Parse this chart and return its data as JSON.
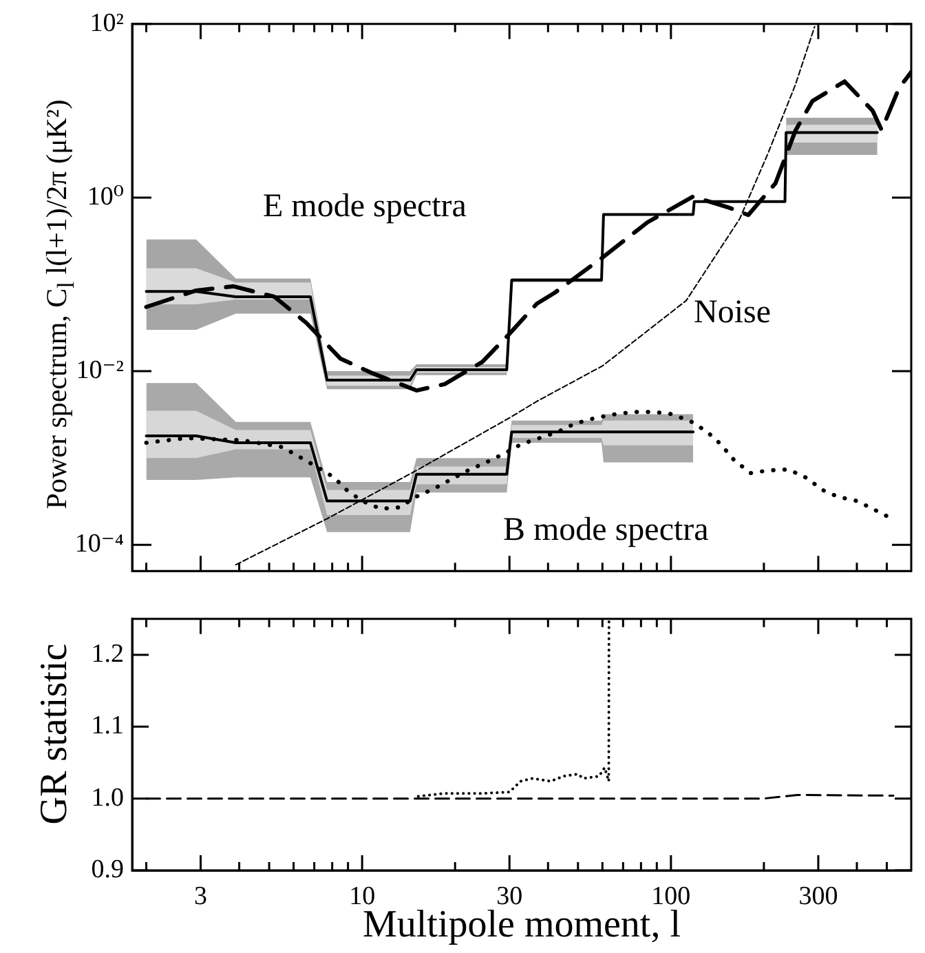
{
  "chart_data": [
    {
      "type": "line",
      "ylabel": "Power spectrum, C$_{l}$ l(l+1)/2π (μK²)",
      "log": "xy",
      "xlim": [
        1.8,
        600
      ],
      "ylim": [
        5e-05,
        100
      ],
      "xticks": [
        {
          "value": 2,
          "label": null
        },
        3,
        {
          "value": 4,
          "label": null
        },
        {
          "value": 5,
          "label": null
        },
        {
          "value": 6,
          "label": null
        },
        {
          "value": 7,
          "label": null
        },
        {
          "value": 8,
          "label": null
        },
        {
          "value": 9,
          "label": null
        },
        10,
        {
          "value": 20,
          "label": null
        },
        30,
        {
          "value": 40,
          "label": null
        },
        {
          "value": 50,
          "label": null
        },
        {
          "value": 60,
          "label": null
        },
        {
          "value": 70,
          "label": null
        },
        {
          "value": 80,
          "label": null
        },
        {
          "value": 90,
          "label": null
        },
        100,
        {
          "value": 200,
          "label": null
        },
        300,
        {
          "value": 400,
          "label": null
        },
        {
          "value": 500,
          "label": null
        }
      ],
      "yticks": [
        {
          "value": 0.0001,
          "label": "10⁻⁴"
        },
        {
          "value": 0.01,
          "label": "10⁻²"
        },
        {
          "value": 1,
          "label": "10⁰"
        },
        {
          "value": 100,
          "label": "10²"
        }
      ],
      "tick_labels": "y",
      "annotations": [
        "E mode spectra",
        "B mode spectra",
        "Noise"
      ],
      "series": [
        {
          "color": "#a6a6a6",
          "x": [
            2,
            2.9,
            3.9,
            6.8,
            7.7,
            14.3,
            15,
            29.4,
            30.5,
            59.6,
            60.5,
            118,
            119,
            234,
            236,
            466
          ],
          "values": [
            null,
            null,
            null,
            null,
            null,
            null,
            null,
            null,
            null,
            null,
            null,
            null,
            null,
            null,
            null,
            null
          ],
          "upper": [
            0.33,
            0.33,
            0.117,
            0.117,
            0.01,
            0.01,
            0.012,
            0.012,
            0.118,
            0.118,
            null,
            null,
            null,
            null,
            8.3,
            8.3
          ],
          "lower": [
            0.03,
            0.03,
            0.046,
            0.046,
            0.0062,
            0.0062,
            0.009,
            0.009,
            0.106,
            0.106,
            null,
            null,
            null,
            null,
            3.1,
            3.1
          ]
        },
        {
          "color": "#dadada",
          "x": [
            2,
            2.9,
            3.9,
            6.8,
            7.7,
            14.3,
            15,
            29.4,
            30.5,
            59.6,
            60.5,
            118,
            119,
            234,
            236,
            466
          ],
          "values": [
            null,
            null,
            null,
            null,
            null,
            null,
            null,
            null,
            null,
            null,
            null,
            null,
            null,
            null,
            null,
            null
          ],
          "upper": [
            0.154,
            0.154,
            0.105,
            0.105,
            0.0089,
            0.0089,
            0.0112,
            0.0112,
            0.115,
            0.115,
            null,
            null,
            null,
            null,
            6.9,
            6.9
          ],
          "lower": [
            0.059,
            0.059,
            0.067,
            0.067,
            0.0068,
            0.0068,
            0.0096,
            0.0096,
            0.109,
            0.109,
            null,
            null,
            null,
            null,
            4.3,
            4.3
          ]
        },
        {
          "color": "#a9a9a9",
          "x": [
            2,
            2.9,
            3.9,
            6.8,
            7.7,
            14.3,
            15,
            29.4,
            30.5,
            59.6,
            60.5,
            118
          ],
          "values": [
            null,
            null,
            null,
            null,
            null,
            null,
            null,
            null,
            null,
            null,
            null,
            null
          ],
          "upper": [
            0.0073,
            0.0073,
            0.0026,
            0.0026,
            0.00053,
            0.00053,
            0.001,
            0.001,
            0.0027,
            0.0027,
            0.0032,
            0.0032
          ],
          "lower": [
            0.00056,
            0.00056,
            0.0006,
            0.0006,
            0.00014,
            0.00014,
            0.0004,
            0.0004,
            0.0015,
            0.0015,
            0.00089,
            0.00089
          ]
        },
        {
          "color": "#d7d7d7",
          "x": [
            2,
            2.9,
            3.9,
            6.8,
            7.7,
            14.3,
            15,
            29.4,
            30.5,
            59.6,
            60.5,
            118
          ],
          "values": [
            null,
            null,
            null,
            null,
            null,
            null,
            null,
            null,
            null,
            null,
            null,
            null
          ],
          "upper": [
            0.0035,
            0.0035,
            0.0021,
            0.0021,
            0.00043,
            0.00043,
            0.0008,
            0.0008,
            0.0024,
            0.0024,
            0.0027,
            0.0027
          ],
          "lower": [
            0.001,
            0.001,
            0.00126,
            0.00126,
            0.00022,
            0.00022,
            0.0005,
            0.0005,
            0.0017,
            0.0017,
            0.0014,
            0.0014
          ]
        },
        {
          "color": "#000000",
          "line_style": "dashed",
          "x": [
            3.9,
            7.7,
            15,
            30,
            36.8,
            60,
            112,
            167,
            206,
            253,
            292
          ],
          "values": [
            5.9e-05,
            0.0002,
            0.00072,
            0.0029,
            0.0045,
            0.0115,
            0.065,
            0.57,
            3.2,
            20,
            93
          ]
        },
        {
          "color": "#000000",
          "line_style": "dashed",
          "x": [
            2,
            2.9,
            3.84,
            5.2,
            6.6,
            8.5,
            10.7,
            15,
            18.5,
            24.5,
            30,
            36.8,
            42,
            59.6,
            84,
            118,
            155,
            178,
            218,
            253,
            287,
            365,
            450,
            481,
            548,
            600
          ],
          "values": [
            0.055,
            0.085,
            0.095,
            0.072,
            0.036,
            0.014,
            0.0096,
            0.006,
            0.0071,
            0.0128,
            0.027,
            0.06,
            0.08,
            0.2,
            0.52,
            1.03,
            0.76,
            0.63,
            1.46,
            5.9,
            12.9,
            21.8,
            10,
            6,
            18.3,
            28
          ]
        },
        {
          "color": "#000000",
          "line_style": "dotted",
          "x": [
            2,
            2.7,
            4.1,
            5.5,
            6.3,
            7.1,
            8.1,
            8.9,
            10,
            11.5,
            13.2,
            15,
            17,
            19.3,
            22,
            25.2,
            28.8,
            32.7,
            37.6,
            43,
            49,
            57,
            66,
            76,
            88,
            101,
            117,
            131,
            145,
            160,
            181,
            207,
            240,
            275,
            309,
            346,
            400,
            450,
            506
          ],
          "values": [
            0.0015,
            0.0017,
            0.0016,
            0.00134,
            0.00102,
            0.0008,
            0.0006,
            0.00043,
            0.00032,
            0.00026,
            0.00027,
            0.00036,
            0.00044,
            0.00056,
            0.00072,
            0.00089,
            0.00112,
            0.00144,
            0.0017,
            0.002,
            0.0025,
            0.0029,
            0.0032,
            0.0034,
            0.0034,
            0.0032,
            0.0026,
            0.002,
            0.00144,
            0.00095,
            0.00067,
            0.00072,
            0.00074,
            0.00059,
            0.00043,
            0.00036,
            0.00032,
            0.00026,
            0.00021
          ]
        },
        {
          "color": "#000000",
          "line_style": "solid",
          "x": [
            2,
            2.9,
            3.9,
            6.8,
            7.7,
            14.3,
            15,
            29.4,
            30.5,
            59.6,
            60.5,
            118,
            119,
            234,
            236,
            466
          ],
          "values": [
            0.083,
            0.083,
            0.072,
            0.072,
            0.0079,
            0.0079,
            0.0104,
            0.0104,
            0.112,
            0.112,
            0.64,
            0.64,
            0.9,
            0.9,
            5.6,
            5.6
          ]
        },
        {
          "color": "#000000",
          "line_style": "solid",
          "x": [
            2,
            2.9,
            3.9,
            6.8,
            7.7,
            14.3,
            15,
            29.4,
            30.5,
            59.6,
            60.5,
            118
          ],
          "values": [
            0.0018,
            0.0018,
            0.0015,
            0.0015,
            0.00032,
            0.00032,
            0.00065,
            0.00065,
            0.002,
            0.002,
            0.002,
            0.002
          ]
        }
      ]
    },
    {
      "type": "line",
      "xlabel": "Multipole moment, l",
      "ylabel": "GR statistic",
      "log": "x",
      "xlim": [
        1.8,
        600
      ],
      "ylim": [
        0.9,
        1.25
      ],
      "xticks": [
        {
          "value": 2,
          "label": null
        },
        3,
        {
          "value": 4,
          "label": null
        },
        {
          "value": 5,
          "label": null
        },
        {
          "value": 6,
          "label": null
        },
        {
          "value": 7,
          "label": null
        },
        {
          "value": 8,
          "label": null
        },
        {
          "value": 9,
          "label": null
        },
        10,
        {
          "value": 20,
          "label": null
        },
        30,
        {
          "value": 40,
          "label": null
        },
        {
          "value": 50,
          "label": null
        },
        {
          "value": 60,
          "label": null
        },
        {
          "value": 70,
          "label": null
        },
        {
          "value": 80,
          "label": null
        },
        {
          "value": 90,
          "label": null
        },
        100,
        {
          "value": 200,
          "label": null
        },
        300,
        {
          "value": 400,
          "label": null
        },
        {
          "value": 500,
          "label": null
        }
      ],
      "yticks": [
        0.9,
        {
          "value": 1,
          "label": "1.0"
        },
        1.1,
        1.2
      ],
      "series": [
        {
          "color": "#000000",
          "line_style": "dashed",
          "x": [
            2,
            10,
            100,
            200,
            257,
            525
          ],
          "values": [
            1.0,
            1.0,
            1.0,
            1.0,
            1.005,
            1.004
          ]
        },
        {
          "color": "#000000",
          "line_style": "dotted",
          "x": [
            15.2,
            18.3,
            24,
            30,
            32.6,
            35.6,
            40.8,
            44.8,
            50,
            52,
            58.5,
            61,
            62.9,
            63
          ],
          "values": [
            1.003,
            1.007,
            1.007,
            1.009,
            1.024,
            1.028,
            1.024,
            1.031,
            1.034,
            1.028,
            1.031,
            1.043,
            1.024,
            1.25
          ]
        }
      ]
    }
  ]
}
